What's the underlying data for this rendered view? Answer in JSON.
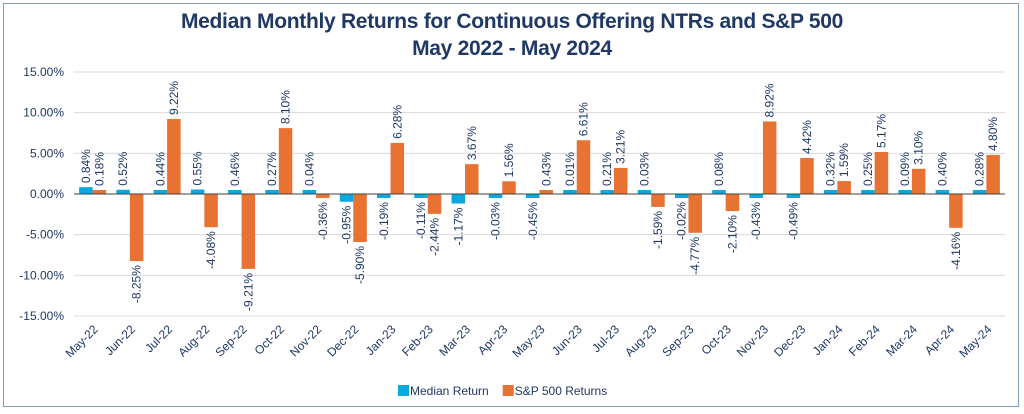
{
  "chart_data": {
    "type": "bar",
    "title": "Median Monthly Returns for Continuous Offering NTRs and S&P 500",
    "subtitle": "May 2022 - May 2024",
    "xlabel": "",
    "ylabel": "",
    "ylim": [
      -15,
      15
    ],
    "yticks": [
      "15.00%",
      "10.00%",
      "5.00%",
      "0.00%",
      "-5.00%",
      "-10.00%",
      "-15.00%"
    ],
    "grid": true,
    "legend_position": "bottom",
    "categories": [
      "May-22",
      "Jun-22",
      "Jul-22",
      "Aug-22",
      "Sep-22",
      "Oct-22",
      "Nov-22",
      "Dec-22",
      "Jan-23",
      "Feb-23",
      "Mar-23",
      "Apr-23",
      "May-23",
      "Jun-23",
      "Jul-23",
      "Aug-23",
      "Sep-23",
      "Oct-23",
      "Nov-23",
      "Dec-23",
      "Jan-24",
      "Feb-24",
      "Mar-24",
      "Apr-24",
      "May-24"
    ],
    "series": [
      {
        "name": "Median Return",
        "color": "#0aa8df",
        "values": [
          0.84,
          0.52,
          0.44,
          0.55,
          0.46,
          0.27,
          0.04,
          -0.95,
          -0.19,
          -0.11,
          -1.17,
          -0.03,
          -0.45,
          0.01,
          0.21,
          0.03,
          -0.02,
          0.08,
          -0.43,
          -0.49,
          0.32,
          0.25,
          0.09,
          0.4,
          0.28
        ]
      },
      {
        "name": "S&P 500 Returns",
        "color": "#e87232",
        "values": [
          0.18,
          -8.25,
          9.22,
          -4.08,
          -9.21,
          8.1,
          -0.36,
          -5.9,
          6.28,
          -2.44,
          3.67,
          1.56,
          0.43,
          6.61,
          3.21,
          -1.59,
          -4.77,
          -2.1,
          8.92,
          4.42,
          1.59,
          5.17,
          3.1,
          -4.16,
          4.8
        ]
      }
    ]
  }
}
